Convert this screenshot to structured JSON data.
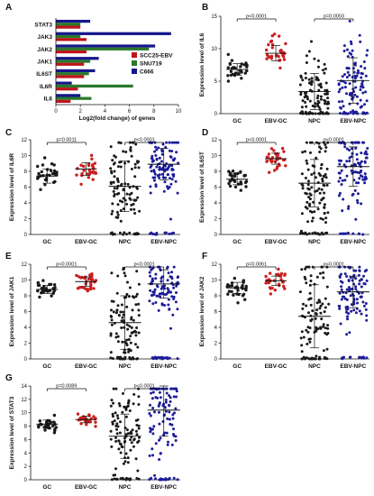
{
  "colors": {
    "gc": "#1a1a1a",
    "ebv_gc": "#cc2020",
    "npc": "#1a1a1a",
    "ebv_npc": "#1c1c9a",
    "scc25_ebv": "#c0141c",
    "snu719": "#2a7a2a",
    "c666": "#16168c"
  },
  "chart_data": [
    {
      "panel": "A",
      "type": "bar",
      "orientation": "horizontal",
      "xlabel": "Log2(fold change) of genes",
      "xlim": [
        0,
        10
      ],
      "xticks": [
        0,
        2,
        4,
        6,
        8,
        10
      ],
      "categories": [
        "STAT3",
        "JAK3",
        "JAK2",
        "JAK1",
        "IL6ST",
        "IL6R",
        "IL6"
      ],
      "series": [
        {
          "name": "SCC25-EBV",
          "color": "#c0141c",
          "values": [
            2.0,
            2.5,
            2.5,
            2.3,
            2.3,
            1.8,
            1.2
          ]
        },
        {
          "name": "SNU719",
          "color": "#2a7a2a",
          "values": [
            2.0,
            2.0,
            7.6,
            2.8,
            2.7,
            6.3,
            2.9
          ]
        },
        {
          "name": "C666",
          "color": "#16168c",
          "values": [
            2.8,
            9.4,
            8.1,
            3.5,
            3.2,
            1.3,
            2.0
          ]
        }
      ],
      "legend": "right"
    },
    {
      "panel": "B",
      "type": "scatter",
      "ylabel": "Expression level of IL6",
      "ylim": [
        0,
        15
      ],
      "yticks": [
        0,
        5,
        10,
        15
      ],
      "categories": [
        "GC",
        "EBV-GC",
        "NPC",
        "EBV-NPC"
      ],
      "means": [
        6.8,
        9.3,
        3.4,
        5.1
      ],
      "sd": [
        0.9,
        1.2,
        2.8,
        3.5
      ],
      "pvalues": [
        {
          "label": "p<0.0001",
          "between": [
            0,
            1
          ]
        },
        {
          "label": "p=0.0003",
          "between": [
            2,
            3
          ]
        }
      ]
    },
    {
      "panel": "C",
      "type": "scatter",
      "ylabel": "Expression level of IL6R",
      "ylim": [
        0,
        12
      ],
      "yticks": [
        0,
        2,
        4,
        6,
        8,
        10,
        12
      ],
      "categories": [
        "GC",
        "EBV-GC",
        "NPC",
        "EBV-NPC"
      ],
      "means": [
        7.4,
        8.3,
        6.1,
        8.9
      ],
      "sd": [
        0.9,
        0.8,
        3.2,
        2.0
      ],
      "pvalues": [
        {
          "label": "p=0.0011",
          "between": [
            0,
            1
          ]
        },
        {
          "label": "p<0.0001",
          "between": [
            2,
            3
          ]
        }
      ]
    },
    {
      "panel": "D",
      "type": "scatter",
      "ylabel": "Expression level of IL6ST",
      "ylim": [
        0,
        12
      ],
      "yticks": [
        0,
        2,
        4,
        6,
        8,
        10,
        12
      ],
      "categories": [
        "GC",
        "EBV-GC",
        "NPC",
        "EBV-NPC"
      ],
      "means": [
        7.0,
        9.6,
        6.5,
        8.6
      ],
      "sd": [
        0.7,
        0.7,
        3.0,
        2.5
      ],
      "pvalues": [
        {
          "label": "p<0.0001",
          "between": [
            0,
            1
          ]
        },
        {
          "label": "p<0.0001",
          "between": [
            2,
            3
          ]
        }
      ]
    },
    {
      "panel": "E",
      "type": "scatter",
      "ylabel": "Expression level of JAK1",
      "ylim": [
        0,
        12
      ],
      "yticks": [
        0,
        2,
        4,
        6,
        8,
        10,
        12
      ],
      "categories": [
        "GC",
        "EBV-GC",
        "NPC",
        "EBV-NPC"
      ],
      "means": [
        8.8,
        9.8,
        4.6,
        9.5
      ],
      "sd": [
        0.5,
        0.6,
        3.4,
        1.8
      ],
      "pvalues": [
        {
          "label": "p<0.0001",
          "between": [
            0,
            1
          ]
        },
        {
          "label": "p<0.0001",
          "between": [
            2,
            3
          ]
        }
      ]
    },
    {
      "panel": "F",
      "type": "scatter",
      "ylabel": "Expression level of JAK2",
      "ylim": [
        0,
        12
      ],
      "yticks": [
        0,
        2,
        4,
        6,
        8,
        10,
        12
      ],
      "categories": [
        "GC",
        "EBV-GC",
        "NPC",
        "EBV-NPC"
      ],
      "means": [
        9.0,
        9.9,
        5.4,
        8.5
      ],
      "sd": [
        0.7,
        0.6,
        4.0,
        2.0
      ],
      "pvalues": [
        {
          "label": "p=0.0061",
          "between": [
            0,
            1
          ]
        },
        {
          "label": "p<0.0001",
          "between": [
            2,
            3
          ]
        }
      ]
    },
    {
      "panel": "G",
      "type": "scatter",
      "ylabel": "Expression level of STAT3",
      "ylim": [
        0,
        14
      ],
      "yticks": [
        0,
        2,
        4,
        6,
        8,
        10,
        12,
        14
      ],
      "categories": [
        "GC",
        "EBV-GC",
        "NPC",
        "EBV-NPC"
      ],
      "means": [
        8.3,
        9.0,
        6.5,
        10.4
      ],
      "sd": [
        0.6,
        0.5,
        3.3,
        3.9
      ],
      "pvalues": [
        {
          "label": "p=0.0089",
          "between": [
            0,
            1
          ]
        },
        {
          "label": "p<0.0001",
          "between": [
            2,
            3
          ]
        }
      ]
    }
  ]
}
